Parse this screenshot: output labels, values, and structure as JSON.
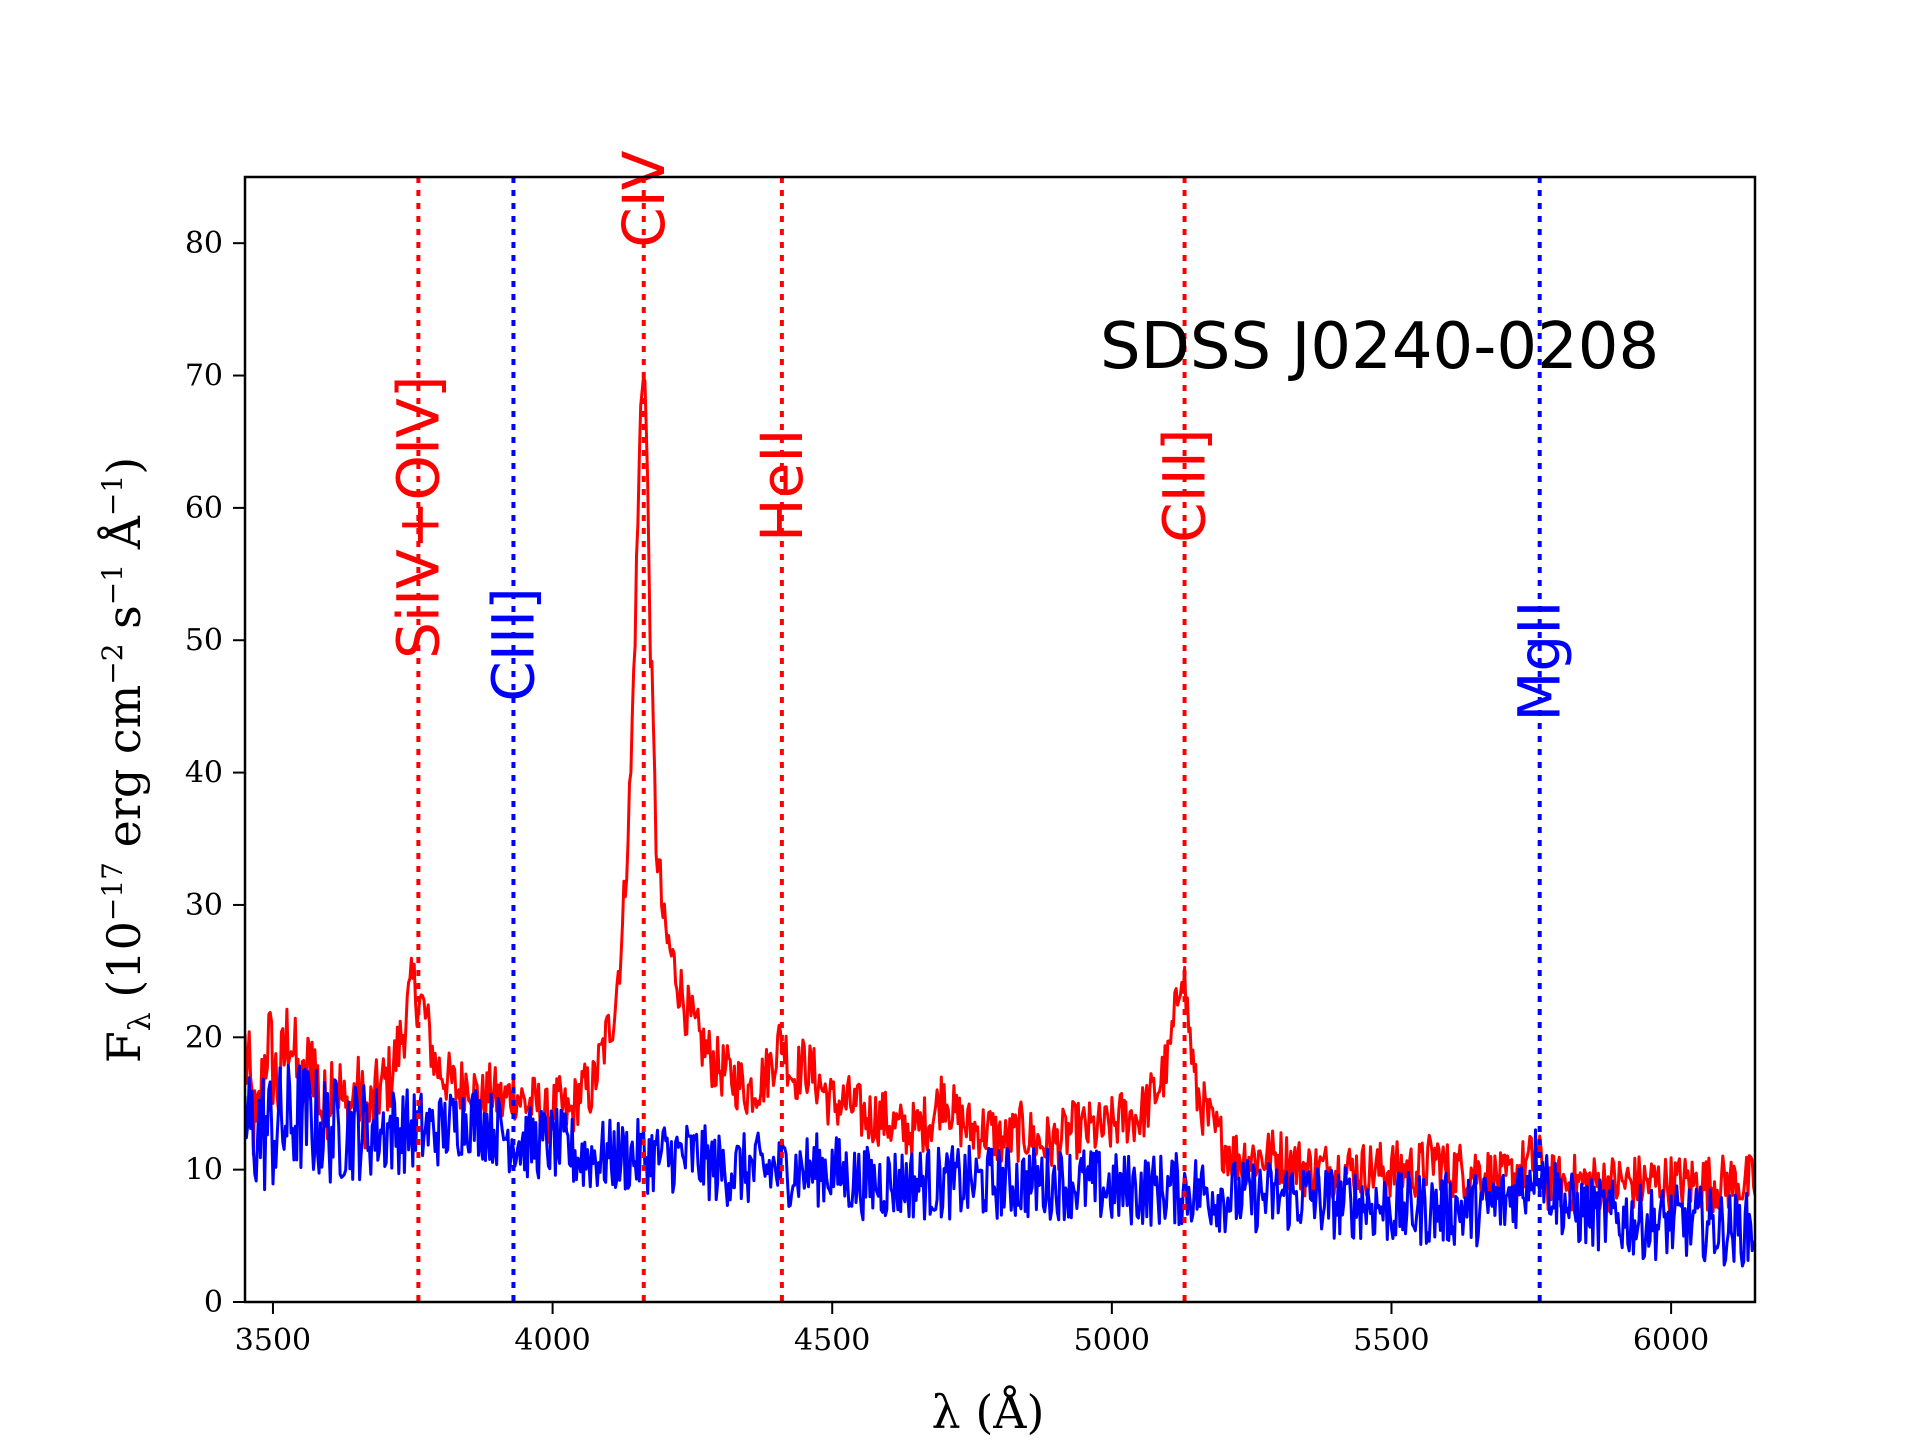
{
  "chart_data": {
    "type": "line",
    "title": "",
    "annotation": "SDSS  J0240-0208",
    "xlabel": "λ (Å)",
    "ylabel": {
      "base": "F",
      "base_sub": "λ",
      "text1": " (10",
      "exp1": "−17",
      "text2": " erg cm",
      "exp2": "−2",
      "text3": " s",
      "exp3": "−1",
      "text4": " Å",
      "exp4": "−1",
      "text5": ")"
    },
    "xlim": [
      3450,
      6150
    ],
    "ylim": [
      0,
      85
    ],
    "xticks": [
      3500,
      4000,
      4500,
      5000,
      5500,
      6000
    ],
    "yticks": [
      0,
      10,
      20,
      30,
      40,
      50,
      60,
      70,
      80
    ],
    "grid": false,
    "colors": {
      "red": "#ff0000",
      "blue": "#0000ff"
    },
    "series": [
      {
        "color": "#ff0000",
        "points": [
          [
            3450,
            19
          ],
          [
            3470,
            12
          ],
          [
            3490,
            20
          ],
          [
            3510,
            16
          ],
          [
            3530,
            21
          ],
          [
            3550,
            15
          ],
          [
            3570,
            19
          ],
          [
            3590,
            14
          ],
          [
            3610,
            18
          ],
          [
            3630,
            14
          ],
          [
            3650,
            16
          ],
          [
            3670,
            14
          ],
          [
            3690,
            16
          ],
          [
            3710,
            17
          ],
          [
            3730,
            20
          ],
          [
            3750,
            24
          ],
          [
            3770,
            22
          ],
          [
            3790,
            18
          ],
          [
            3810,
            17
          ],
          [
            3830,
            16
          ],
          [
            3850,
            17
          ],
          [
            3870,
            15
          ],
          [
            3890,
            16
          ],
          [
            3910,
            15
          ],
          [
            3930,
            16
          ],
          [
            3950,
            15
          ],
          [
            3970,
            15
          ],
          [
            3990,
            14
          ],
          [
            4010,
            15
          ],
          [
            4030,
            14
          ],
          [
            4050,
            16
          ],
          [
            4070,
            16
          ],
          [
            4090,
            19
          ],
          [
            4110,
            22
          ],
          [
            4125,
            28
          ],
          [
            4140,
            40
          ],
          [
            4150,
            55
          ],
          [
            4158,
            68
          ],
          [
            4163,
            72
          ],
          [
            4168,
            65
          ],
          [
            4175,
            50
          ],
          [
            4185,
            35
          ],
          [
            4200,
            28
          ],
          [
            4220,
            25
          ],
          [
            4240,
            22
          ],
          [
            4260,
            20
          ],
          [
            4290,
            18
          ],
          [
            4320,
            17
          ],
          [
            4350,
            16
          ],
          [
            4380,
            17
          ],
          [
            4410,
            20
          ],
          [
            4430,
            17
          ],
          [
            4450,
            18
          ],
          [
            4470,
            17
          ],
          [
            4500,
            15
          ],
          [
            4530,
            15
          ],
          [
            4560,
            14
          ],
          [
            4590,
            14
          ],
          [
            4620,
            13
          ],
          [
            4650,
            13
          ],
          [
            4680,
            14
          ],
          [
            4700,
            16
          ],
          [
            4720,
            14
          ],
          [
            4750,
            13
          ],
          [
            4780,
            13
          ],
          [
            4810,
            12
          ],
          [
            4840,
            13
          ],
          [
            4870,
            12
          ],
          [
            4900,
            12
          ],
          [
            4930,
            13
          ],
          [
            4960,
            13
          ],
          [
            4990,
            13
          ],
          [
            5020,
            14
          ],
          [
            5050,
            14
          ],
          [
            5080,
            16
          ],
          [
            5100,
            18
          ],
          [
            5115,
            22
          ],
          [
            5125,
            26
          ],
          [
            5135,
            22
          ],
          [
            5150,
            16
          ],
          [
            5180,
            13
          ],
          [
            5220,
            11
          ],
          [
            5260,
            11
          ],
          [
            5300,
            11
          ],
          [
            5350,
            10
          ],
          [
            5400,
            10
          ],
          [
            5450,
            10
          ],
          [
            5500,
            10
          ],
          [
            5550,
            10
          ],
          [
            5580,
            11
          ],
          [
            5600,
            10
          ],
          [
            5650,
            10
          ],
          [
            5700,
            9
          ],
          [
            5730,
            10
          ],
          [
            5760,
            11
          ],
          [
            5780,
            9
          ],
          [
            5820,
            9
          ],
          [
            5870,
            9
          ],
          [
            5920,
            9
          ],
          [
            5970,
            9
          ],
          [
            6020,
            9
          ],
          [
            6070,
            9
          ],
          [
            6120,
            9
          ],
          [
            6150,
            9
          ]
        ],
        "jitter": 2.2
      },
      {
        "color": "#0000ff",
        "points": [
          [
            3450,
            13
          ],
          [
            3500,
            13
          ],
          [
            3550,
            14
          ],
          [
            3600,
            13
          ],
          [
            3650,
            13
          ],
          [
            3700,
            13
          ],
          [
            3750,
            13
          ],
          [
            3800,
            13
          ],
          [
            3850,
            14
          ],
          [
            3900,
            13
          ],
          [
            3950,
            12
          ],
          [
            4000,
            12
          ],
          [
            4050,
            11
          ],
          [
            4100,
            11
          ],
          [
            4150,
            11
          ],
          [
            4200,
            11
          ],
          [
            4250,
            11
          ],
          [
            4300,
            10
          ],
          [
            4350,
            10
          ],
          [
            4400,
            10
          ],
          [
            4450,
            10
          ],
          [
            4500,
            10
          ],
          [
            4550,
            9
          ],
          [
            4600,
            9
          ],
          [
            4650,
            9
          ],
          [
            4700,
            9
          ],
          [
            4750,
            9
          ],
          [
            4800,
            9
          ],
          [
            4850,
            9
          ],
          [
            4900,
            9
          ],
          [
            4950,
            9
          ],
          [
            5000,
            8.5
          ],
          [
            5050,
            8.5
          ],
          [
            5100,
            8.5
          ],
          [
            5150,
            8.5
          ],
          [
            5200,
            8
          ],
          [
            5250,
            8
          ],
          [
            5300,
            8
          ],
          [
            5350,
            8
          ],
          [
            5400,
            7.5
          ],
          [
            5450,
            7.5
          ],
          [
            5500,
            7
          ],
          [
            5550,
            7
          ],
          [
            5600,
            7
          ],
          [
            5650,
            7
          ],
          [
            5700,
            7.5
          ],
          [
            5740,
            9
          ],
          [
            5760,
            11
          ],
          [
            5780,
            9
          ],
          [
            5820,
            7
          ],
          [
            5880,
            6.5
          ],
          [
            5950,
            6
          ],
          [
            6000,
            6
          ],
          [
            6050,
            6
          ],
          [
            6100,
            5.5
          ],
          [
            6150,
            5.5
          ]
        ],
        "jitter": 2.8
      }
    ],
    "vlines": [
      {
        "x": 3760,
        "color": "#ff0000",
        "label": "SiIV+OIV]",
        "label_y": 70
      },
      {
        "x": 3930,
        "color": "#0000ff",
        "label": "CIII]",
        "label_y": 54
      },
      {
        "x": 4163,
        "color": "#ff0000",
        "label": "CIV",
        "label_y": 87
      },
      {
        "x": 4410,
        "color": "#ff0000",
        "label": "HeII",
        "label_y": 66
      },
      {
        "x": 5130,
        "color": "#ff0000",
        "label": "CIII]",
        "label_y": 66
      },
      {
        "x": 5765,
        "color": "#0000ff",
        "label": "MgII",
        "label_y": 53
      }
    ]
  }
}
